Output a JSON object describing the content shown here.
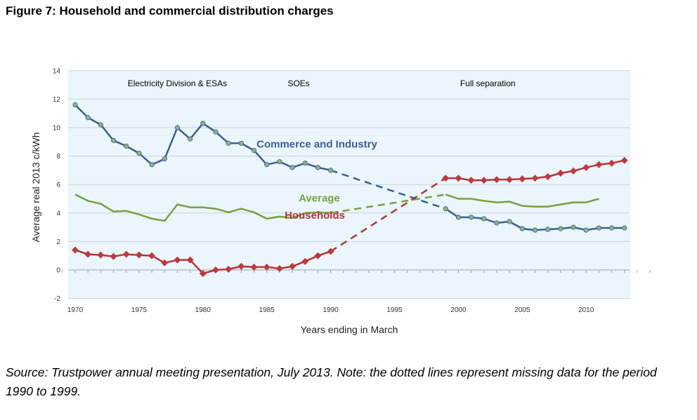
{
  "figure_title": "Figure 7: Household and commercial distribution charges",
  "caption": "Source: Trustpower annual meeting presentation, July 2013. Note: the dotted lines represent missing data for the period 1990 to 1999.",
  "chart_data": {
    "type": "line",
    "xlabel": "Years ending in March",
    "ylabel": "Average real 2013 c/kWh",
    "xlim": [
      1969,
      2015
    ],
    "ylim": [
      -2,
      14
    ],
    "xticks": [
      1970,
      1975,
      1980,
      1985,
      1990,
      1995,
      2000,
      2005,
      2010
    ],
    "yticks": [
      -2,
      0,
      2,
      4,
      6,
      8,
      10,
      12,
      14
    ],
    "grid": "horizontal",
    "background": "#eaf6fb",
    "eras": [
      {
        "label": "Electricity Division & ESAs",
        "x": 1978
      },
      {
        "label": "SOEs",
        "x": 1987.5
      },
      {
        "label": "Full separation",
        "x": 2002.3
      }
    ],
    "series": [
      {
        "name": "Commerce and Industry",
        "color": "#3a5f95",
        "marker": "circle",
        "marker_color": "#8cb57a",
        "label_x": 1984.2,
        "label_y": 8.6,
        "x": [
          1970,
          1971,
          1972,
          1973,
          1974,
          1975,
          1976,
          1977,
          1978,
          1979,
          1980,
          1981,
          1982,
          1983,
          1984,
          1985,
          1986,
          1987,
          1988,
          1989,
          1990,
          1999,
          2000,
          2001,
          2002,
          2003,
          2004,
          2005,
          2006,
          2007,
          2008,
          2009,
          2010,
          2011,
          2012,
          2013
        ],
        "y": [
          11.6,
          10.7,
          10.2,
          9.1,
          8.7,
          8.2,
          7.4,
          7.8,
          10.0,
          9.2,
          10.3,
          9.7,
          8.9,
          8.9,
          8.4,
          7.4,
          7.6,
          7.2,
          7.5,
          7.2,
          7.0,
          4.3,
          3.7,
          3.7,
          3.6,
          3.3,
          3.4,
          2.9,
          2.8,
          2.85,
          2.9,
          3.0,
          2.8,
          2.95,
          2.95,
          2.95
        ],
        "missing_from": 1990,
        "missing_to": 1999
      },
      {
        "name": "Average",
        "color": "#78a040",
        "marker": "none",
        "label_x": 1987.5,
        "label_y": 4.8,
        "x": [
          1970,
          1971,
          1972,
          1973,
          1974,
          1975,
          1976,
          1977,
          1978,
          1979,
          1980,
          1981,
          1982,
          1983,
          1984,
          1985,
          1986,
          1987,
          1988,
          1989,
          1990,
          1999,
          2000,
          2001,
          2002,
          2003,
          2004,
          2005,
          2006,
          2007,
          2008,
          2009,
          2010,
          2011
        ],
        "y": [
          5.3,
          4.85,
          4.65,
          4.1,
          4.15,
          3.9,
          3.6,
          3.45,
          4.6,
          4.4,
          4.4,
          4.3,
          4.05,
          4.3,
          4.05,
          3.6,
          3.75,
          3.65,
          4.0,
          4.05,
          4.0,
          5.3,
          5.0,
          5.0,
          4.85,
          4.75,
          4.8,
          4.5,
          4.45,
          4.45,
          4.6,
          4.75,
          4.75,
          5.0
        ],
        "missing_from": 1990,
        "missing_to": 1999
      },
      {
        "name": "Households",
        "color": "#b2353a",
        "marker": "diamond",
        "marker_color": "#c0383d",
        "label_x": 1986.4,
        "label_y": 3.6,
        "x": [
          1970,
          1971,
          1972,
          1973,
          1974,
          1975,
          1976,
          1977,
          1978,
          1979,
          1980,
          1981,
          1982,
          1983,
          1984,
          1985,
          1986,
          1987,
          1988,
          1989,
          1990,
          1999,
          2000,
          2001,
          2002,
          2003,
          2004,
          2005,
          2006,
          2007,
          2008,
          2009,
          2010,
          2011,
          2012,
          2013
        ],
        "y": [
          1.4,
          1.1,
          1.05,
          0.95,
          1.1,
          1.05,
          1.0,
          0.5,
          0.7,
          0.7,
          -0.25,
          0.0,
          0.05,
          0.25,
          0.2,
          0.2,
          0.1,
          0.25,
          0.6,
          1.0,
          1.3,
          6.45,
          6.45,
          6.3,
          6.3,
          6.35,
          6.35,
          6.4,
          6.45,
          6.55,
          6.8,
          6.95,
          7.2,
          7.4,
          7.5,
          7.7
        ],
        "missing_from": 1990,
        "missing_to": 1999
      }
    ]
  }
}
